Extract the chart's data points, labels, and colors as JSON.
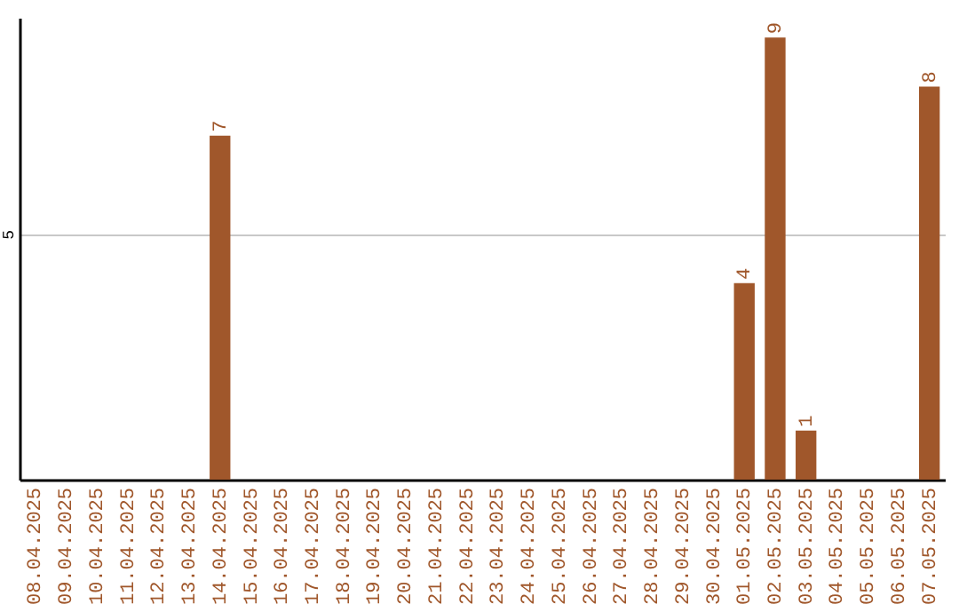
{
  "chart_data": {
    "type": "bar",
    "categories": [
      "08.04.2025",
      "09.04.2025",
      "10.04.2025",
      "11.04.2025",
      "12.04.2025",
      "13.04.2025",
      "14.04.2025",
      "15.04.2025",
      "16.04.2025",
      "17.04.2025",
      "18.04.2025",
      "19.04.2025",
      "20.04.2025",
      "21.04.2025",
      "22.04.2025",
      "23.04.2025",
      "24.04.2025",
      "25.04.2025",
      "26.04.2025",
      "27.04.2025",
      "28.04.2025",
      "29.04.2025",
      "30.04.2025",
      "01.05.2025",
      "02.05.2025",
      "03.05.2025",
      "04.05.2025",
      "05.05.2025",
      "06.05.2025",
      "07.05.2025"
    ],
    "values": [
      0,
      0,
      0,
      0,
      0,
      0,
      7,
      0,
      0,
      0,
      0,
      0,
      0,
      0,
      0,
      0,
      0,
      0,
      0,
      0,
      0,
      0,
      0,
      4,
      9,
      1,
      0,
      0,
      0,
      8
    ],
    "value_labels": [
      null,
      null,
      null,
      null,
      null,
      null,
      "7",
      null,
      null,
      null,
      null,
      null,
      null,
      null,
      null,
      null,
      null,
      null,
      null,
      null,
      null,
      null,
      null,
      "4",
      "9",
      "1",
      null,
      null,
      null,
      "8"
    ],
    "color": "#a0572b",
    "ylim": [
      0,
      9.4
    ],
    "yticks": [
      5
    ],
    "grid": "y"
  }
}
